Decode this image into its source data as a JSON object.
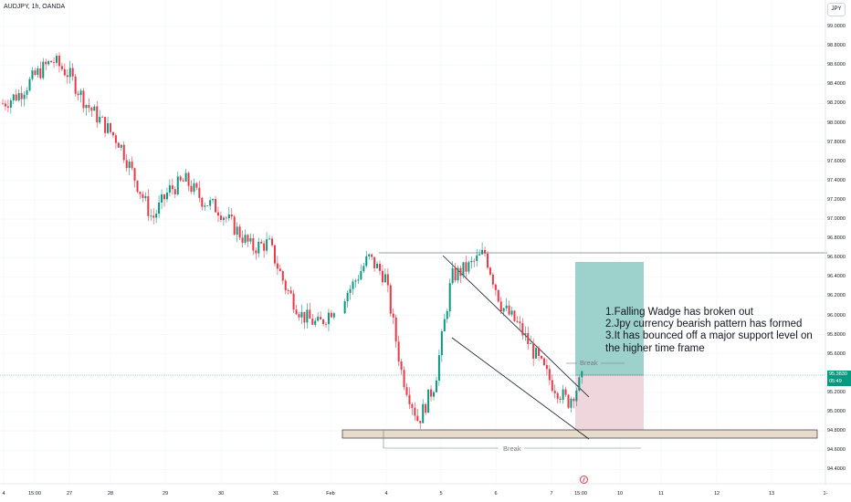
{
  "header": {
    "symbol": "AUDJPY, 1h, OANDA",
    "currency": "JPY"
  },
  "price_axis": {
    "ticks": [
      "99.0000",
      "98.8000",
      "98.6000",
      "98.4000",
      "98.2000",
      "98.0000",
      "97.8000",
      "97.6000",
      "97.4000",
      "97.2000",
      "97.0000",
      "96.8000",
      "96.6000",
      "96.4000",
      "96.2000",
      "96.0000",
      "95.8000",
      "95.6000",
      "95.4000",
      "95.2000",
      "95.0000",
      "94.8000",
      "94.6000",
      "94.4000"
    ],
    "last_price": "95.3830",
    "countdown": "05:49"
  },
  "time_axis": {
    "ticks": [
      "4",
      "15:00",
      "27",
      "28",
      "29",
      "30",
      "31",
      "Feb",
      "4",
      "5",
      "6",
      "7",
      "15:00",
      "10",
      "11",
      "12",
      "13",
      "1-"
    ]
  },
  "drawings": {
    "break_label_top": "Break",
    "break_label_bottom": "Break",
    "annotation_lines": [
      "1.Falling Wadge has broken out",
      "2.Jpy currency bearish pattern has formed",
      "3.It has bounced off a major support level on",
      "the higher time frame"
    ]
  },
  "colors": {
    "bull": "#089981",
    "bear": "#f23645",
    "profit_zone": "#9cd1cc",
    "loss_zone": "#efd5dc",
    "support_zone": "#e7dccb"
  },
  "chart_data": {
    "type": "candlestick",
    "symbol": "AUDJPY",
    "interval": "1h",
    "y_range": [
      94.3,
      99.1
    ],
    "close_path": [
      {
        "t": 0,
        "c": 98.2
      },
      {
        "t": 1,
        "c": 98.3
      },
      {
        "t": 2,
        "c": 98.5
      },
      {
        "t": 3,
        "c": 98.65
      },
      {
        "t": 4,
        "c": 98.5
      },
      {
        "t": 5,
        "c": 98.2
      },
      {
        "t": 6,
        "c": 98.0
      },
      {
        "t": 7,
        "c": 97.8
      },
      {
        "t": 8,
        "c": 97.4
      },
      {
        "t": 9,
        "c": 97.0
      },
      {
        "t": 10,
        "c": 97.3
      },
      {
        "t": 11,
        "c": 97.4
      },
      {
        "t": 12,
        "c": 97.2
      },
      {
        "t": 13,
        "c": 97.1
      },
      {
        "t": 14,
        "c": 96.9
      },
      {
        "t": 15,
        "c": 96.7
      },
      {
        "t": 16,
        "c": 96.75
      },
      {
        "t": 17,
        "c": 96.3
      },
      {
        "t": 18,
        "c": 96.0
      },
      {
        "t": 19,
        "c": 95.9
      },
      {
        "t": 20,
        "c": 96.1
      },
      {
        "t": 21,
        "c": 96.3
      },
      {
        "t": 22,
        "c": 96.6
      },
      {
        "t": 23,
        "c": 96.4
      },
      {
        "t": 24,
        "c": 95.4
      },
      {
        "t": 25,
        "c": 94.9
      },
      {
        "t": 26,
        "c": 95.3
      },
      {
        "t": 27,
        "c": 96.4
      },
      {
        "t": 28,
        "c": 96.5
      },
      {
        "t": 29,
        "c": 96.65
      },
      {
        "t": 30,
        "c": 96.1
      },
      {
        "t": 31,
        "c": 95.9
      },
      {
        "t": 32,
        "c": 95.6
      },
      {
        "t": 33,
        "c": 95.3
      },
      {
        "t": 34,
        "c": 95.1
      },
      {
        "t": 35,
        "c": 95.38
      }
    ],
    "levels": {
      "resistance": 96.63,
      "support_zone": [
        94.72,
        94.82
      ],
      "entry": 95.38
    }
  }
}
